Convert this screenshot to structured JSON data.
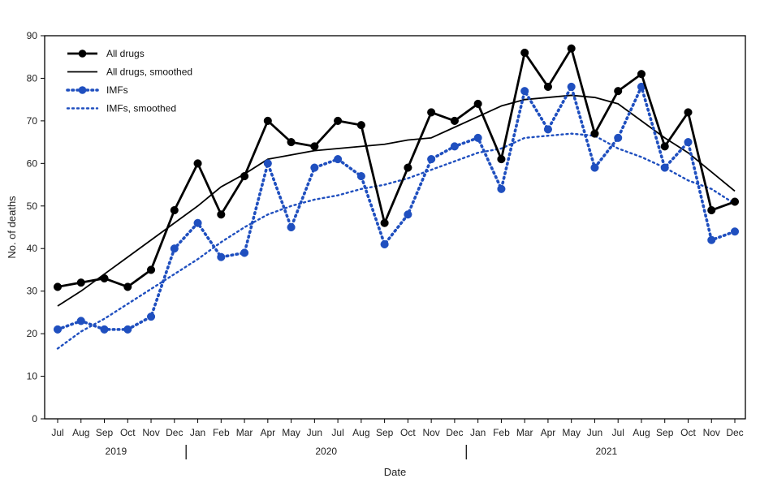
{
  "chart_data": {
    "type": "line",
    "ylabel": "No. of deaths",
    "xlabel": "Date",
    "ylim": [
      0,
      90
    ],
    "yticks": [
      0,
      10,
      20,
      30,
      40,
      50,
      60,
      70,
      80,
      90
    ],
    "categories": [
      "Jul",
      "Aug",
      "Sep",
      "Oct",
      "Nov",
      "Dec",
      "Jan",
      "Feb",
      "Mar",
      "Apr",
      "May",
      "Jun",
      "Jul",
      "Aug",
      "Sep",
      "Oct",
      "Nov",
      "Dec",
      "Jan",
      "Feb",
      "Mar",
      "Apr",
      "May",
      "Jun",
      "Jul",
      "Aug",
      "Sep",
      "Oct",
      "Nov",
      "Dec"
    ],
    "year_groups": [
      {
        "label": "2019",
        "start": 0,
        "end": 5
      },
      {
        "label": "2020",
        "start": 6,
        "end": 17
      },
      {
        "label": "2021",
        "start": 18,
        "end": 29
      }
    ],
    "legend_position": "top-left",
    "series": [
      {
        "name": "All drugs",
        "style": "solid-markers",
        "color": "#000000",
        "values": [
          31,
          32,
          33,
          31,
          35,
          49,
          60,
          48,
          57,
          70,
          65,
          64,
          70,
          69,
          46,
          59,
          72,
          70,
          74,
          61,
          86,
          78,
          87,
          67,
          77,
          81,
          64,
          72,
          49,
          51
        ]
      },
      {
        "name": "All drugs, smoothed",
        "style": "solid",
        "color": "#000000",
        "values": [
          26.5,
          30,
          34,
          38,
          42,
          46,
          50,
          54.5,
          57.5,
          61,
          62,
          63,
          63.5,
          64,
          64.5,
          65.5,
          66,
          68.5,
          71,
          73.5,
          75,
          75.5,
          76,
          75.5,
          74,
          70,
          66,
          62.5,
          58,
          53.5
        ]
      },
      {
        "name": "IMFs",
        "style": "dotted-markers",
        "color": "#1f4fbf",
        "values": [
          21,
          23,
          21,
          21,
          24,
          40,
          46,
          38,
          39,
          60,
          45,
          59,
          61,
          57,
          41,
          48,
          61,
          64,
          66,
          54,
          77,
          68,
          78,
          59,
          66,
          78,
          59,
          65,
          42,
          44
        ]
      },
      {
        "name": "IMFs, smoothed",
        "style": "dotted",
        "color": "#1f4fbf",
        "values": [
          16.5,
          20.5,
          23.5,
          27,
          30.5,
          34,
          37.5,
          41.5,
          45,
          48,
          50,
          51.5,
          52.5,
          54,
          55,
          56.5,
          58.5,
          60.5,
          62.5,
          63.5,
          66,
          66.5,
          67,
          66.5,
          63.5,
          61.5,
          59,
          56,
          54,
          50.5
        ]
      }
    ]
  }
}
